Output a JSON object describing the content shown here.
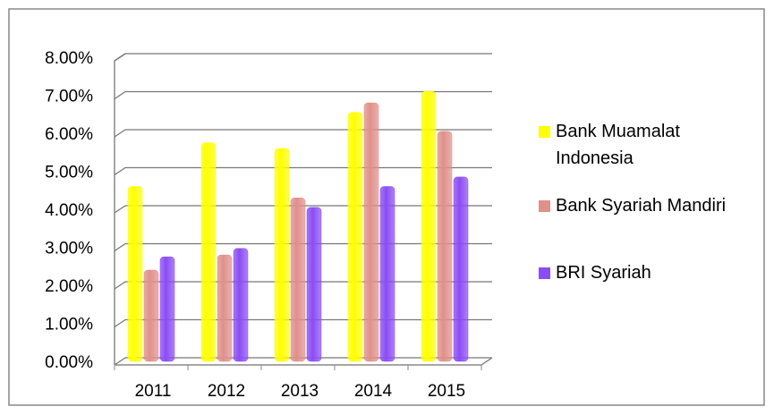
{
  "chart_data": {
    "type": "bar",
    "categories": [
      "2011",
      "2012",
      "2013",
      "2014",
      "2015"
    ],
    "series": [
      {
        "name": "Bank Muamalat Indonesia",
        "color": "#ffff00",
        "values": [
          4.6,
          5.75,
          5.6,
          6.55,
          7.1
        ]
      },
      {
        "name": "Bank Syariah Mandiri",
        "color": "#e0908a",
        "values": [
          2.4,
          2.8,
          4.3,
          6.8,
          6.05
        ]
      },
      {
        "name": "BRI Syariah",
        "color": "#8b4cf5",
        "values": [
          2.75,
          2.97,
          4.05,
          4.6,
          4.85
        ]
      }
    ],
    "ylim": [
      0,
      8
    ],
    "yticks": [
      {
        "value": 0,
        "label": "0.00%"
      },
      {
        "value": 1,
        "label": "1.00%"
      },
      {
        "value": 2,
        "label": "2.00%"
      },
      {
        "value": 3,
        "label": "3.00%"
      },
      {
        "value": 4,
        "label": "4.00%"
      },
      {
        "value": 5,
        "label": "5.00%"
      },
      {
        "value": 6,
        "label": "6.00%"
      },
      {
        "value": 7,
        "label": "7.00%"
      },
      {
        "value": 8,
        "label": "8.00%"
      }
    ],
    "grid": true,
    "legend": "right"
  }
}
